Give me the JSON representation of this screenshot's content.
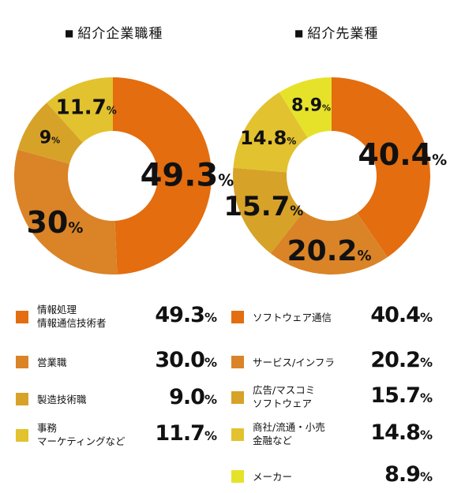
{
  "chart_data": [
    {
      "type": "pie",
      "title": "紹介企業職種",
      "unit": "%",
      "slices": [
        {
          "name": "情報処理\n情報通信技術者",
          "value": 49.3,
          "label": "49.3",
          "legend_value": "49.3",
          "color": "#e36d0f"
        },
        {
          "name": "営業職",
          "value": 30.0,
          "label": "30",
          "legend_value": "30.0",
          "color": "#da8427"
        },
        {
          "name": "製造技術職",
          "value": 9.0,
          "label": "9",
          "legend_value": "9.0",
          "color": "#d7a228"
        },
        {
          "name": "事務\nマーケティングなど",
          "value": 11.7,
          "label": "11.7",
          "legend_value": "11.7",
          "color": "#e2c22e"
        }
      ]
    },
    {
      "type": "pie",
      "title": "紹介先業種",
      "unit": "%",
      "slices": [
        {
          "name": "ソフトウェア通信",
          "value": 40.4,
          "label": "40.4",
          "legend_value": "40.4",
          "color": "#e36d0f"
        },
        {
          "name": "サービス/インフラ",
          "value": 20.2,
          "label": "20.2",
          "legend_value": "20.2",
          "color": "#da8427"
        },
        {
          "name": "広告/マスコミ\nソフトウェア",
          "value": 15.7,
          "label": "15.7",
          "legend_value": "15.7",
          "color": "#d7a228"
        },
        {
          "name": "商社/流通・小売\n金融など",
          "value": 14.8,
          "label": "14.8",
          "legend_value": "14.8",
          "color": "#e2c22e"
        },
        {
          "name": "メーカー",
          "value": 8.9,
          "label": "8.9",
          "legend_value": "8.9",
          "color": "#e6e22a"
        }
      ]
    }
  ],
  "title_marker": "■"
}
